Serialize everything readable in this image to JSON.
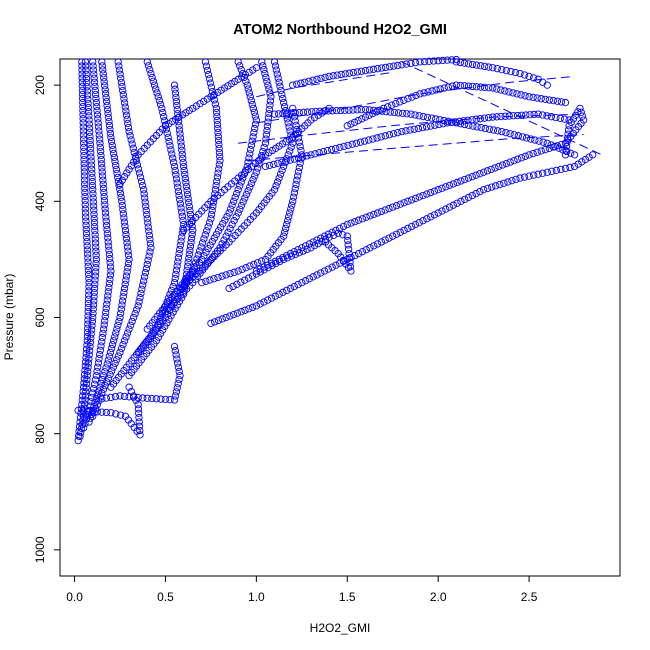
{
  "chart_data": {
    "type": "scatter",
    "title": "ATOM2 Northbound H2O2_GMI",
    "xlabel": "H2O2_GMI",
    "ylabel": "Pressure (mbar)",
    "xlim": [
      -0.08,
      3.0
    ],
    "ylim": [
      1045,
      155
    ],
    "y_reversed": true,
    "grid": false,
    "legend": "none",
    "marker": "open-circle",
    "color": "#0000ff",
    "x_ticks": [
      0.0,
      0.5,
      1.0,
      1.5,
      2.0,
      2.5
    ],
    "x_tick_labels": [
      "0.0",
      "0.5",
      "1.0",
      "1.5",
      "2.0",
      "2.5"
    ],
    "y_ticks": [
      200,
      400,
      600,
      800,
      1000
    ],
    "y_tick_labels": [
      "200",
      "400",
      "600",
      "800",
      "1000"
    ],
    "profiles": [
      {
        "x": [
          0.02,
          0.03,
          0.05,
          0.07,
          0.08,
          0.06,
          0.05,
          0.04
        ],
        "y": [
          812,
          780,
          720,
          640,
          540,
          420,
          300,
          160
        ]
      },
      {
        "x": [
          0.03,
          0.05,
          0.07,
          0.1,
          0.12,
          0.1,
          0.08,
          0.06
        ],
        "y": [
          805,
          770,
          700,
          600,
          500,
          380,
          260,
          160
        ]
      },
      {
        "x": [
          0.05,
          0.08,
          0.12,
          0.16,
          0.2,
          0.17,
          0.14,
          0.1
        ],
        "y": [
          790,
          760,
          700,
          620,
          520,
          420,
          300,
          160
        ]
      },
      {
        "x": [
          0.08,
          0.12,
          0.18,
          0.25,
          0.3,
          0.26,
          0.2,
          0.15
        ],
        "y": [
          780,
          740,
          680,
          600,
          500,
          400,
          290,
          160
        ]
      },
      {
        "x": [
          0.02,
          0.1,
          0.2,
          0.28,
          0.36,
          0.35,
          0.3
        ],
        "y": [
          760,
          762,
          764,
          770,
          802,
          750,
          720
        ]
      },
      {
        "x": [
          0.1,
          0.15,
          0.25,
          0.35,
          0.42,
          0.38,
          0.3,
          0.24
        ],
        "y": [
          770,
          730,
          660,
          580,
          480,
          380,
          280,
          160
        ]
      },
      {
        "x": [
          0.15,
          0.25,
          0.35,
          0.45,
          0.55,
          0.58,
          0.55
        ],
        "y": [
          740,
          735,
          738,
          740,
          742,
          700,
          650
        ]
      },
      {
        "x": [
          0.2,
          0.3,
          0.45,
          0.55,
          0.6,
          0.55,
          0.48,
          0.4
        ],
        "y": [
          720,
          680,
          620,
          540,
          440,
          340,
          240,
          160
        ]
      },
      {
        "x": [
          0.3,
          0.45,
          0.6,
          0.65,
          0.6,
          0.55
        ],
        "y": [
          700,
          640,
          560,
          450,
          340,
          200
        ]
      },
      {
        "x": [
          0.35,
          0.5,
          0.65,
          0.75,
          0.8,
          0.78,
          0.72
        ],
        "y": [
          660,
          600,
          520,
          430,
          330,
          240,
          160
        ]
      },
      {
        "x": [
          0.4,
          0.55,
          0.7,
          0.85,
          0.95,
          1.0,
          0.95,
          0.9
        ],
        "y": [
          620,
          560,
          500,
          420,
          340,
          260,
          200,
          160
        ]
      },
      {
        "x": [
          0.5,
          0.65,
          0.8,
          0.9,
          1.0,
          1.05,
          1.08,
          1.03
        ],
        "y": [
          590,
          540,
          480,
          420,
          350,
          300,
          220,
          160
        ]
      },
      {
        "x": [
          0.55,
          0.72,
          0.85,
          1.0,
          1.1,
          1.2,
          1.15,
          1.1
        ],
        "y": [
          560,
          510,
          470,
          420,
          380,
          300,
          230,
          160
        ]
      },
      {
        "x": [
          0.7,
          0.9,
          1.05,
          1.15,
          1.2,
          1.25,
          1.2
        ],
        "y": [
          540,
          520,
          500,
          460,
          400,
          320,
          240
        ]
      },
      {
        "x": [
          0.85,
          1.0,
          1.15,
          1.3,
          1.4,
          1.45,
          1.5,
          1.52,
          1.45,
          1.38
        ],
        "y": [
          550,
          525,
          500,
          480,
          462,
          455,
          460,
          520,
          490,
          470
        ]
      },
      {
        "x": [
          0.75,
          1.0,
          1.25,
          1.5,
          1.75,
          2.0,
          2.25,
          2.45,
          2.6,
          2.75,
          2.85
        ],
        "y": [
          610,
          580,
          540,
          500,
          460,
          420,
          380,
          360,
          350,
          340,
          320
        ]
      },
      {
        "x": [
          1.0,
          1.25,
          1.5,
          1.75,
          2.0,
          2.25,
          2.5,
          2.7,
          2.8,
          2.78,
          2.72,
          2.7
        ],
        "y": [
          520,
          480,
          440,
          410,
          380,
          350,
          320,
          300,
          260,
          240,
          270,
          320
        ]
      },
      {
        "x": [
          1.05,
          1.3,
          1.55,
          1.8,
          2.05,
          2.3,
          2.55,
          2.72
        ],
        "y": [
          340,
          320,
          300,
          280,
          265,
          255,
          250,
          260
        ]
      },
      {
        "x": [
          1.1,
          1.35,
          1.6,
          1.85,
          2.1,
          2.35,
          2.6,
          2.75
        ],
        "y": [
          250,
          245,
          242,
          250,
          265,
          280,
          300,
          320
        ]
      },
      {
        "x": [
          1.5,
          1.7,
          1.9,
          2.1,
          2.3,
          2.5,
          2.7
        ],
        "y": [
          270,
          240,
          215,
          200,
          205,
          220,
          230
        ]
      },
      {
        "x": [
          1.2,
          1.4,
          1.6,
          1.8,
          1.9,
          2.0,
          2.1
        ],
        "y": [
          200,
          185,
          175,
          165,
          160,
          158,
          156
        ]
      },
      {
        "x": [
          2.1,
          2.3,
          2.45,
          2.55,
          2.6
        ],
        "y": [
          160,
          170,
          180,
          190,
          200
        ]
      },
      {
        "x": [
          0.25,
          0.35,
          0.5,
          0.65,
          0.75,
          0.9,
          1.0
        ],
        "y": [
          370,
          320,
          270,
          240,
          220,
          190,
          170
        ]
      },
      {
        "x": [
          0.6,
          0.75,
          0.9,
          1.05,
          1.2,
          1.3,
          1.4
        ],
        "y": [
          450,
          400,
          360,
          320,
          290,
          260,
          240
        ]
      }
    ],
    "connector_segments": [
      {
        "x": [
          1.8,
          2.9
        ],
        "y": [
          160,
          320
        ]
      },
      {
        "x": [
          1.0,
          1.4,
          1.9,
          2.4,
          2.75
        ],
        "y": [
          265,
          245,
          215,
          195,
          185
        ]
      },
      {
        "x": [
          0.9,
          1.3,
          1.8,
          2.3,
          2.78
        ],
        "y": [
          300,
          285,
          268,
          255,
          250
        ]
      },
      {
        "x": [
          0.95,
          1.4,
          1.9,
          2.4,
          2.8
        ],
        "y": [
          330,
          318,
          305,
          292,
          285
        ]
      },
      {
        "x": [
          1.0,
          1.2,
          1.4,
          1.6,
          1.75
        ],
        "y": [
          220,
          205,
          195,
          185,
          178
        ]
      }
    ]
  }
}
